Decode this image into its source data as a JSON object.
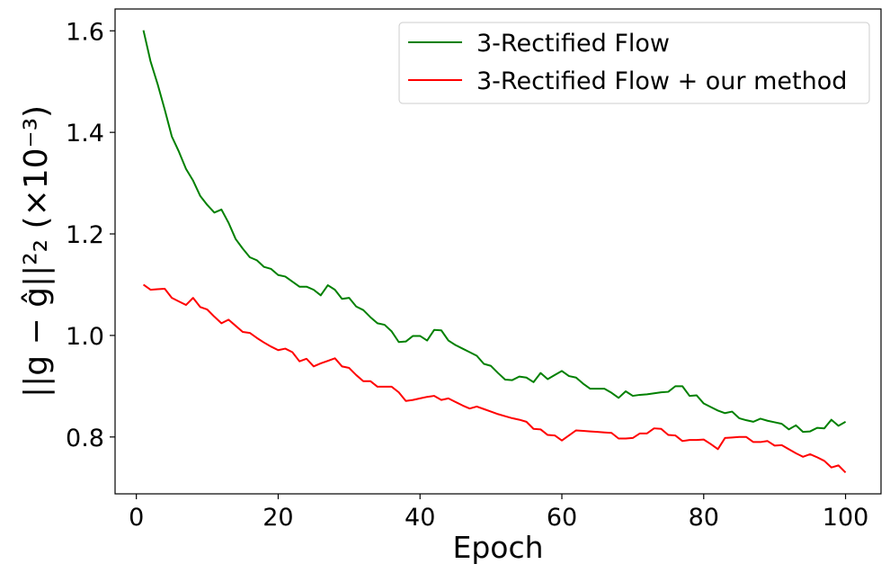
{
  "chart_data": {
    "type": "line",
    "title": "",
    "xlabel": "Epoch",
    "ylabel": "||g − ĝ||²₂ (×10⁻³)",
    "xlim": [
      -3,
      105
    ],
    "ylim": [
      0.688,
      1.643
    ],
    "x_ticks": [
      0,
      20,
      40,
      60,
      80,
      100
    ],
    "y_ticks": [
      0.8,
      1.0,
      1.2,
      1.4,
      1.6
    ],
    "x_tick_labels": [
      "0",
      "20",
      "40",
      "60",
      "80",
      "100"
    ],
    "y_tick_labels": [
      "0.8",
      "1.0",
      "1.2",
      "1.4",
      "1.6"
    ],
    "grid": false,
    "legend_position": "top-right",
    "series": [
      {
        "name": "3-Rectified Flow",
        "color": "#008000",
        "points": [
          [
            1,
            1.601
          ],
          [
            2,
            1.54
          ],
          [
            3,
            1.495
          ],
          [
            4,
            1.445
          ],
          [
            5,
            1.392
          ],
          [
            6,
            1.362
          ],
          [
            7,
            1.328
          ],
          [
            8,
            1.305
          ],
          [
            9,
            1.275
          ],
          [
            10,
            1.257
          ],
          [
            11,
            1.242
          ],
          [
            12,
            1.248
          ],
          [
            13,
            1.222
          ],
          [
            14,
            1.19
          ],
          [
            15,
            1.171
          ],
          [
            16,
            1.154
          ],
          [
            17,
            1.148
          ],
          [
            18,
            1.135
          ],
          [
            19,
            1.131
          ],
          [
            20,
            1.119
          ],
          [
            21,
            1.116
          ],
          [
            22,
            1.106
          ],
          [
            23,
            1.096
          ],
          [
            24,
            1.096
          ],
          [
            25,
            1.09
          ],
          [
            26,
            1.079
          ],
          [
            27,
            1.099
          ],
          [
            28,
            1.09
          ],
          [
            29,
            1.072
          ],
          [
            30,
            1.074
          ],
          [
            31,
            1.057
          ],
          [
            32,
            1.05
          ],
          [
            33,
            1.036
          ],
          [
            34,
            1.024
          ],
          [
            35,
            1.021
          ],
          [
            36,
            1.008
          ],
          [
            37,
            0.987
          ],
          [
            38,
            0.988
          ],
          [
            39,
            0.999
          ],
          [
            40,
            0.999
          ],
          [
            41,
            0.99
          ],
          [
            42,
            1.011
          ],
          [
            43,
            1.01
          ],
          [
            44,
            0.99
          ],
          [
            45,
            0.981
          ],
          [
            46,
            0.974
          ],
          [
            47,
            0.967
          ],
          [
            48,
            0.96
          ],
          [
            49,
            0.944
          ],
          [
            50,
            0.94
          ],
          [
            51,
            0.926
          ],
          [
            52,
            0.913
          ],
          [
            53,
            0.912
          ],
          [
            54,
            0.919
          ],
          [
            55,
            0.917
          ],
          [
            56,
            0.908
          ],
          [
            57,
            0.926
          ],
          [
            58,
            0.914
          ],
          [
            59,
            0.922
          ],
          [
            60,
            0.93
          ],
          [
            61,
            0.92
          ],
          [
            62,
            0.917
          ],
          [
            63,
            0.905
          ],
          [
            64,
            0.895
          ],
          [
            65,
            0.895
          ],
          [
            66,
            0.895
          ],
          [
            67,
            0.887
          ],
          [
            68,
            0.877
          ],
          [
            69,
            0.89
          ],
          [
            70,
            0.881
          ],
          [
            71,
            0.883
          ],
          [
            72,
            0.884
          ],
          [
            73,
            0.886
          ],
          [
            74,
            0.888
          ],
          [
            75,
            0.889
          ],
          [
            76,
            0.9
          ],
          [
            77,
            0.9
          ],
          [
            78,
            0.881
          ],
          [
            79,
            0.882
          ],
          [
            80,
            0.866
          ],
          [
            81,
            0.859
          ],
          [
            82,
            0.852
          ],
          [
            83,
            0.847
          ],
          [
            84,
            0.85
          ],
          [
            85,
            0.837
          ],
          [
            86,
            0.833
          ],
          [
            87,
            0.83
          ],
          [
            88,
            0.836
          ],
          [
            89,
            0.832
          ],
          [
            90,
            0.829
          ],
          [
            91,
            0.826
          ],
          [
            92,
            0.815
          ],
          [
            93,
            0.823
          ],
          [
            94,
            0.81
          ],
          [
            95,
            0.811
          ],
          [
            96,
            0.818
          ],
          [
            97,
            0.817
          ],
          [
            98,
            0.834
          ],
          [
            99,
            0.822
          ],
          [
            100,
            0.83
          ]
        ]
      },
      {
        "name": "3-Rectified Flow + our method",
        "color": "#ff0000",
        "points": [
          [
            1,
            1.1
          ],
          [
            2,
            1.09
          ],
          [
            3,
            1.091
          ],
          [
            4,
            1.092
          ],
          [
            5,
            1.074
          ],
          [
            6,
            1.067
          ],
          [
            7,
            1.06
          ],
          [
            8,
            1.074
          ],
          [
            9,
            1.056
          ],
          [
            10,
            1.051
          ],
          [
            11,
            1.037
          ],
          [
            12,
            1.024
          ],
          [
            13,
            1.031
          ],
          [
            14,
            1.019
          ],
          [
            15,
            1.007
          ],
          [
            16,
            1.005
          ],
          [
            17,
            0.995
          ],
          [
            18,
            0.986
          ],
          [
            19,
            0.978
          ],
          [
            20,
            0.971
          ],
          [
            21,
            0.974
          ],
          [
            22,
            0.967
          ],
          [
            23,
            0.949
          ],
          [
            24,
            0.954
          ],
          [
            25,
            0.939
          ],
          [
            26,
            0.945
          ],
          [
            27,
            0.95
          ],
          [
            28,
            0.955
          ],
          [
            29,
            0.939
          ],
          [
            30,
            0.936
          ],
          [
            31,
            0.922
          ],
          [
            32,
            0.91
          ],
          [
            33,
            0.91
          ],
          [
            34,
            0.899
          ],
          [
            35,
            0.899
          ],
          [
            36,
            0.899
          ],
          [
            37,
            0.888
          ],
          [
            38,
            0.871
          ],
          [
            39,
            0.873
          ],
          [
            40,
            0.876
          ],
          [
            41,
            0.879
          ],
          [
            42,
            0.881
          ],
          [
            43,
            0.873
          ],
          [
            44,
            0.876
          ],
          [
            45,
            0.869
          ],
          [
            46,
            0.862
          ],
          [
            47,
            0.856
          ],
          [
            48,
            0.86
          ],
          [
            49,
            0.855
          ],
          [
            50,
            0.85
          ],
          [
            51,
            0.845
          ],
          [
            52,
            0.841
          ],
          [
            53,
            0.837
          ],
          [
            54,
            0.834
          ],
          [
            55,
            0.83
          ],
          [
            56,
            0.816
          ],
          [
            57,
            0.815
          ],
          [
            58,
            0.804
          ],
          [
            59,
            0.803
          ],
          [
            60,
            0.793
          ],
          [
            61,
            0.803
          ],
          [
            62,
            0.813
          ],
          [
            63,
            0.812
          ],
          [
            64,
            0.811
          ],
          [
            65,
            0.81
          ],
          [
            66,
            0.809
          ],
          [
            67,
            0.808
          ],
          [
            68,
            0.797
          ],
          [
            69,
            0.797
          ],
          [
            70,
            0.798
          ],
          [
            71,
            0.807
          ],
          [
            72,
            0.807
          ],
          [
            73,
            0.817
          ],
          [
            74,
            0.816
          ],
          [
            75,
            0.804
          ],
          [
            76,
            0.803
          ],
          [
            77,
            0.792
          ],
          [
            78,
            0.794
          ],
          [
            79,
            0.794
          ],
          [
            80,
            0.795
          ],
          [
            81,
            0.786
          ],
          [
            82,
            0.776
          ],
          [
            83,
            0.798
          ],
          [
            84,
            0.799
          ],
          [
            85,
            0.8
          ],
          [
            86,
            0.8
          ],
          [
            87,
            0.79
          ],
          [
            88,
            0.79
          ],
          [
            89,
            0.792
          ],
          [
            90,
            0.783
          ],
          [
            91,
            0.784
          ],
          [
            92,
            0.776
          ],
          [
            93,
            0.768
          ],
          [
            94,
            0.761
          ],
          [
            95,
            0.766
          ],
          [
            96,
            0.76
          ],
          [
            97,
            0.753
          ],
          [
            98,
            0.74
          ],
          [
            99,
            0.744
          ],
          [
            100,
            0.73
          ]
        ]
      }
    ]
  }
}
